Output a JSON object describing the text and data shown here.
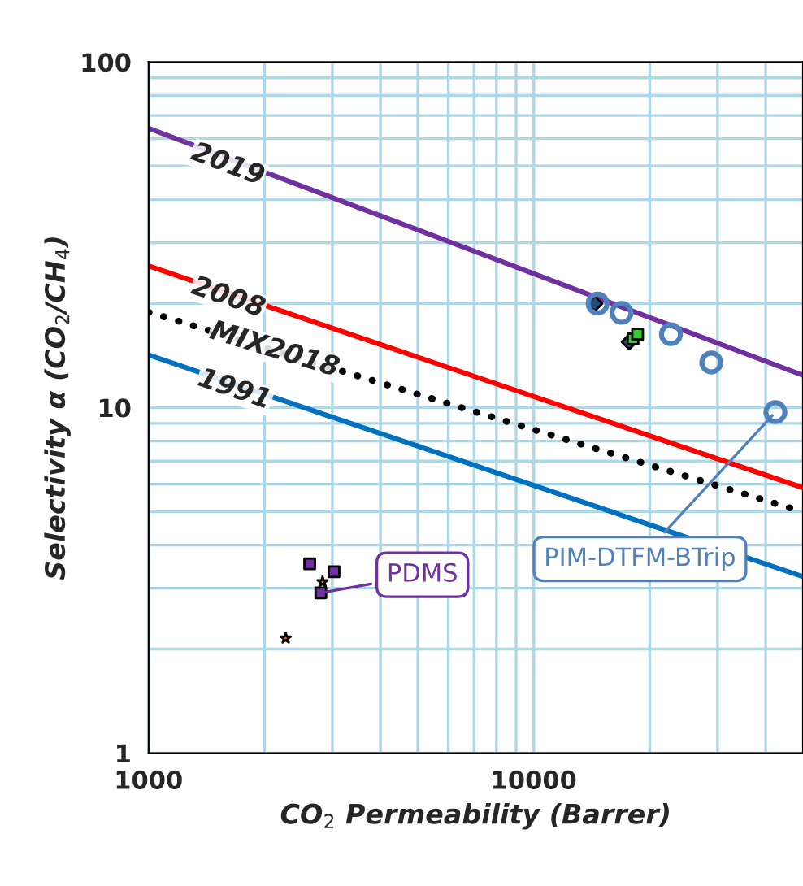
{
  "chart_data": {
    "type": "scatter",
    "xlabel": "CO$_{2}$ Permeability (Barrer)",
    "ylabel": "Selectivity α (CO$_{2}$/CH$_{4}$)",
    "log": "xy",
    "grid": true,
    "xlim": [
      1000,
      50000
    ],
    "ylim": [
      1,
      100
    ],
    "xticks": [
      1000,
      {
        "value": 2000,
        "label": null
      },
      {
        "value": 3000,
        "label": null
      },
      {
        "value": 4000,
        "label": null
      },
      {
        "value": 5000,
        "label": null
      },
      {
        "value": 6000,
        "label": null
      },
      {
        "value": 7000,
        "label": null
      },
      {
        "value": 8000,
        "label": null
      },
      {
        "value": 9000,
        "label": null
      },
      10000,
      {
        "value": 20000,
        "label": null
      },
      {
        "value": 30000,
        "label": null
      },
      {
        "value": 40000,
        "label": null
      }
    ],
    "yticks": [
      1,
      {
        "value": 2,
        "label": null
      },
      {
        "value": 3,
        "label": null
      },
      {
        "value": 4,
        "label": null
      },
      {
        "value": 5,
        "label": null
      },
      {
        "value": 6,
        "label": null
      },
      {
        "value": 7,
        "label": null
      },
      {
        "value": 8,
        "label": null
      },
      {
        "value": 9,
        "label": null
      },
      10,
      {
        "value": 20,
        "label": null
      },
      {
        "value": 30,
        "label": null
      },
      {
        "value": 40,
        "label": null
      },
      {
        "value": 50,
        "label": null
      },
      {
        "value": 60,
        "label": null
      },
      {
        "value": 70,
        "label": null
      },
      {
        "value": 80,
        "label": null
      },
      {
        "value": 90,
        "label": null
      },
      100
    ],
    "series": [
      {
        "type": "line",
        "color": "#7030a0",
        "line_style": "solid",
        "x": [
          1000,
          50000
        ],
        "values": [
          64.3,
          12.4
        ]
      },
      {
        "type": "line",
        "color": "#ff0000",
        "line_style": "solid",
        "x": [
          1000,
          50000
        ],
        "values": [
          25.7,
          5.86
        ]
      },
      {
        "type": "line",
        "color": "#000000",
        "line_style": "dotted",
        "x": [
          1000,
          50000
        ],
        "values": [
          18.9,
          4.99
        ]
      },
      {
        "type": "line",
        "color": "#0070c0",
        "line_style": "solid",
        "x": [
          1000,
          50000
        ],
        "values": [
          14.2,
          3.24
        ]
      },
      {
        "color": "#1f4e79",
        "marker": "diamond",
        "x": [
          14400,
          17700
        ],
        "values": [
          20.0,
          15.5
        ]
      },
      {
        "color": "#33cc33",
        "marker": "square",
        "x": [
          18100,
          18600
        ],
        "values": [
          15.8,
          16.3
        ]
      },
      {
        "color": "#4f81bd",
        "marker": "circle",
        "x": [
          14650,
          16900,
          22700,
          28900,
          42400
        ],
        "values": [
          20.0,
          18.8,
          16.3,
          13.5,
          9.7
        ]
      },
      {
        "color": "#7030a0",
        "marker": "square",
        "x": [
          2620,
          3030,
          2800
        ],
        "values": [
          3.53,
          3.35,
          2.91
        ]
      },
      {
        "color": "#ff6600",
        "marker": "star",
        "x": [
          2830,
          2270
        ],
        "values": [
          3.13,
          2.15
        ]
      }
    ],
    "annotations": [
      {
        "text": "2019",
        "x": 1300,
        "y": 55
      },
      {
        "text": "2008",
        "x": 1300,
        "y": 22.5
      },
      {
        "text": "MIX2018",
        "x": 1450,
        "y": 16.7
      },
      {
        "text": "1991",
        "x": 1350,
        "y": 12.2
      },
      {
        "text": "PIM-DTFM-BTrip",
        "x": 42400,
        "y": 9.7
      },
      {
        "text": "PDMS",
        "x": 2800,
        "y": 2.91
      }
    ]
  }
}
